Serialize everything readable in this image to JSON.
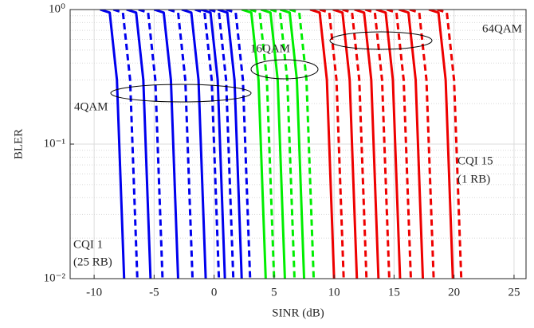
{
  "chart_data": {
    "type": "line",
    "x_label": "SINR (dB)",
    "y_label": "BLER",
    "log_y": true,
    "grid": true,
    "xlim": [
      -12,
      26
    ],
    "ylim": [
      0.01,
      1
    ],
    "xticks": [
      -10,
      -5,
      0,
      5,
      10,
      15,
      20,
      25
    ],
    "yticks": [
      {
        "value": 0.01,
        "label": "10⁻²"
      },
      {
        "value": 0.1,
        "label": "10⁻¹"
      },
      {
        "value": 1,
        "label": "10⁰"
      }
    ],
    "yminorticks": [
      0.02,
      0.03,
      0.04,
      0.05,
      0.06,
      0.07,
      0.08,
      0.09,
      0.2,
      0.3,
      0.4,
      0.5,
      0.6,
      0.7,
      0.8,
      0.9
    ],
    "annotations": [
      "4QAM",
      "16QAM",
      "64QAM",
      "CQI 1",
      "(25 RB)",
      "CQI 15",
      "(1 RB)"
    ],
    "series": [
      {
        "color": "#0000ee",
        "dash": false,
        "x": [
          -9.5,
          -8.7,
          -8.1,
          -7.5
        ],
        "values": [
          1,
          0.95,
          0.3,
          0.01
        ]
      },
      {
        "color": "#0000ee",
        "dash": true,
        "x": [
          -8.4,
          -7.6,
          -7.0,
          -6.4
        ],
        "values": [
          1,
          0.95,
          0.3,
          0.01
        ]
      },
      {
        "color": "#0000ee",
        "dash": false,
        "x": [
          -7.3,
          -6.5,
          -5.9,
          -5.3
        ],
        "values": [
          1,
          0.95,
          0.3,
          0.01
        ]
      },
      {
        "color": "#0000ee",
        "dash": true,
        "x": [
          -6.3,
          -5.5,
          -4.9,
          -4.3
        ],
        "values": [
          1,
          0.95,
          0.3,
          0.01
        ]
      },
      {
        "color": "#0000ee",
        "dash": false,
        "x": [
          -5.0,
          -4.2,
          -3.6,
          -3.0
        ],
        "values": [
          1,
          0.95,
          0.3,
          0.01
        ]
      },
      {
        "color": "#0000ee",
        "dash": true,
        "x": [
          -3.8,
          -3.0,
          -2.4,
          -1.8
        ],
        "values": [
          1,
          0.95,
          0.3,
          0.01
        ]
      },
      {
        "color": "#0000ee",
        "dash": false,
        "x": [
          -2.7,
          -1.9,
          -1.3,
          -0.7
        ],
        "values": [
          1,
          0.95,
          0.3,
          0.01
        ]
      },
      {
        "color": "#0000ee",
        "dash": true,
        "x": [
          -1.6,
          -0.8,
          -0.2,
          0.4
        ],
        "values": [
          1,
          0.95,
          0.3,
          0.01
        ]
      },
      {
        "color": "#0000ee",
        "dash": false,
        "x": [
          -1.1,
          -0.3,
          0.3,
          0.9
        ],
        "values": [
          1,
          0.95,
          0.3,
          0.01
        ]
      },
      {
        "color": "#0000ee",
        "dash": true,
        "x": [
          -0.4,
          0.4,
          1.0,
          1.6
        ],
        "values": [
          1,
          0.95,
          0.3,
          0.01
        ]
      },
      {
        "color": "#0000ee",
        "dash": false,
        "x": [
          0.3,
          1.1,
          1.7,
          2.3
        ],
        "values": [
          1,
          0.95,
          0.3,
          0.01
        ]
      },
      {
        "color": "#0000ee",
        "dash": true,
        "x": [
          1.0,
          1.8,
          2.4,
          3.0
        ],
        "values": [
          1,
          0.95,
          0.3,
          0.01
        ]
      },
      {
        "color": "#00ee00",
        "dash": false,
        "x": [
          2.3,
          3.1,
          3.7,
          4.3
        ],
        "values": [
          1,
          0.95,
          0.3,
          0.01
        ]
      },
      {
        "color": "#00ee00",
        "dash": true,
        "x": [
          3.0,
          3.8,
          4.4,
          5.0
        ],
        "values": [
          1,
          0.95,
          0.3,
          0.01
        ]
      },
      {
        "color": "#00ee00",
        "dash": false,
        "x": [
          3.9,
          4.7,
          5.3,
          5.9
        ],
        "values": [
          1,
          0.95,
          0.3,
          0.01
        ]
      },
      {
        "color": "#00ee00",
        "dash": true,
        "x": [
          4.7,
          5.5,
          6.1,
          6.7
        ],
        "values": [
          1,
          0.95,
          0.3,
          0.01
        ]
      },
      {
        "color": "#00ee00",
        "dash": false,
        "x": [
          5.5,
          6.3,
          6.9,
          7.5
        ],
        "values": [
          1,
          0.95,
          0.3,
          0.01
        ]
      },
      {
        "color": "#00ee00",
        "dash": true,
        "x": [
          6.3,
          7.1,
          7.7,
          8.3
        ],
        "values": [
          1,
          0.95,
          0.3,
          0.01
        ]
      },
      {
        "color": "#ee0000",
        "dash": false,
        "x": [
          8.0,
          8.8,
          9.4,
          10.0
        ],
        "values": [
          1,
          0.95,
          0.3,
          0.01
        ]
      },
      {
        "color": "#ee0000",
        "dash": true,
        "x": [
          8.8,
          9.6,
          10.2,
          10.8
        ],
        "values": [
          1,
          0.95,
          0.3,
          0.01
        ]
      },
      {
        "color": "#ee0000",
        "dash": false,
        "x": [
          9.9,
          10.7,
          11.3,
          11.9
        ],
        "values": [
          1,
          0.95,
          0.3,
          0.01
        ]
      },
      {
        "color": "#ee0000",
        "dash": true,
        "x": [
          10.7,
          11.5,
          12.1,
          12.7
        ],
        "values": [
          1,
          0.95,
          0.3,
          0.01
        ]
      },
      {
        "color": "#ee0000",
        "dash": false,
        "x": [
          11.7,
          12.5,
          13.1,
          13.7
        ],
        "values": [
          1,
          0.95,
          0.3,
          0.01
        ]
      },
      {
        "color": "#ee0000",
        "dash": true,
        "x": [
          12.6,
          13.4,
          14.0,
          14.6
        ],
        "values": [
          1,
          0.95,
          0.3,
          0.01
        ]
      },
      {
        "color": "#ee0000",
        "dash": false,
        "x": [
          13.5,
          14.3,
          14.9,
          15.5
        ],
        "values": [
          1,
          0.95,
          0.3,
          0.01
        ]
      },
      {
        "color": "#ee0000",
        "dash": true,
        "x": [
          14.4,
          15.2,
          15.8,
          16.4
        ],
        "values": [
          1,
          0.95,
          0.3,
          0.01
        ]
      },
      {
        "color": "#ee0000",
        "dash": false,
        "x": [
          15.4,
          16.2,
          16.8,
          17.4
        ],
        "values": [
          1,
          0.95,
          0.3,
          0.01
        ]
      },
      {
        "color": "#ee0000",
        "dash": true,
        "x": [
          16.3,
          17.1,
          17.7,
          18.3
        ],
        "values": [
          1,
          0.95,
          0.3,
          0.01
        ]
      },
      {
        "color": "#ee0000",
        "dash": false,
        "x": [
          17.9,
          18.7,
          19.3,
          19.9
        ],
        "values": [
          1,
          0.95,
          0.3,
          0.01
        ]
      },
      {
        "color": "#ee0000",
        "dash": true,
        "x": [
          18.6,
          19.4,
          20.0,
          20.6
        ],
        "values": [
          1,
          0.95,
          0.3,
          0.01
        ]
      }
    ]
  }
}
